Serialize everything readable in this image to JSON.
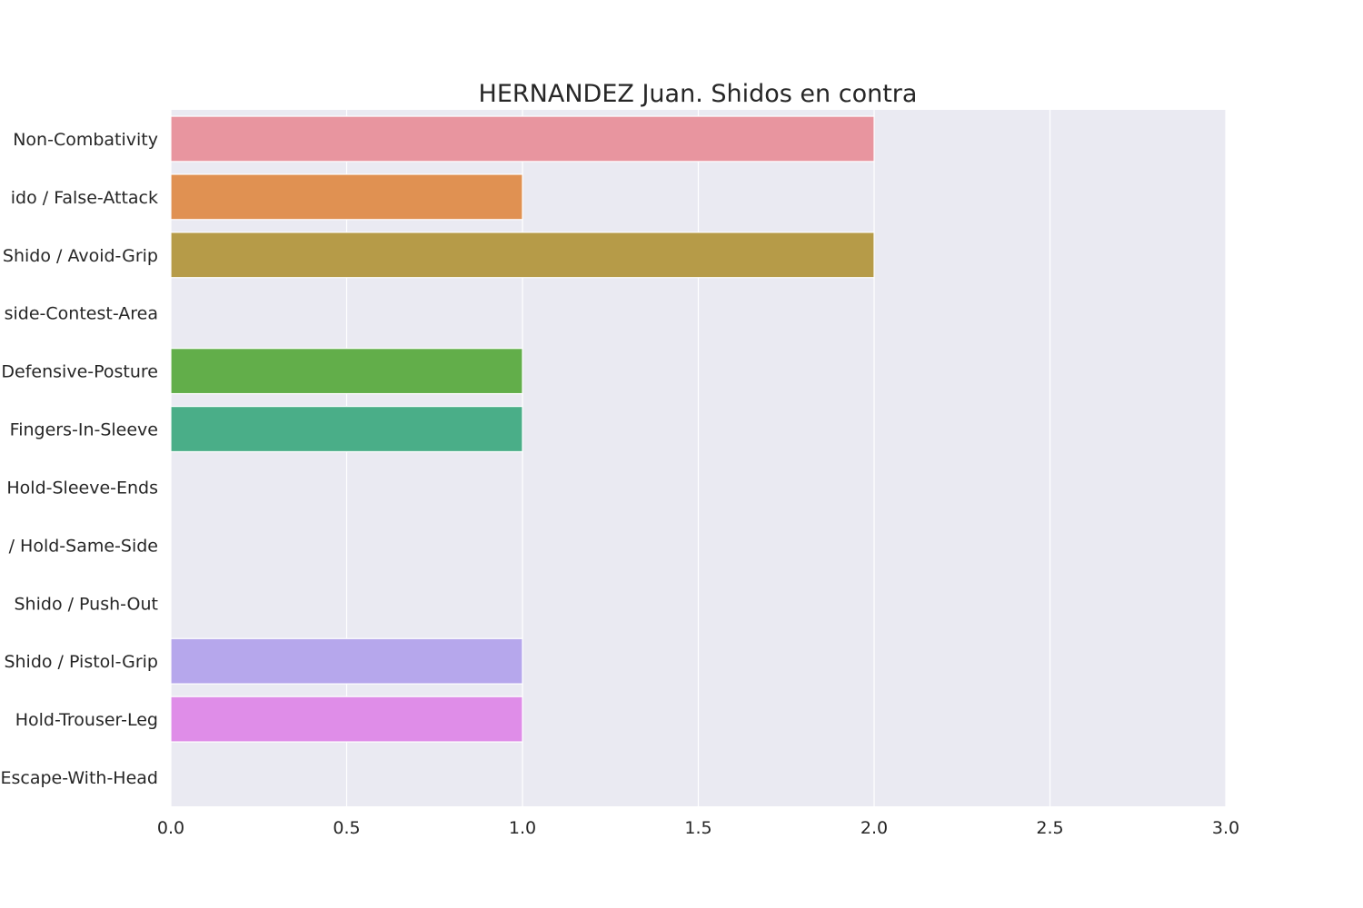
{
  "chart_data": {
    "type": "bar",
    "orientation": "horizontal",
    "title": "HERNANDEZ Juan. Shidos en contra",
    "xlabel": "",
    "ylabel": "",
    "xlim": [
      0,
      3
    ],
    "x_ticks": [
      0.0,
      0.5,
      1.0,
      1.5,
      2.0,
      2.5,
      3.0
    ],
    "x_tick_labels": [
      "0.0",
      "0.5",
      "1.0",
      "1.5",
      "2.0",
      "2.5",
      "3.0"
    ],
    "grid": true,
    "categories": [
      "Non-Combativity",
      "ido / False-Attack",
      "Shido / Avoid-Grip",
      "side-Contest-Area",
      "Defensive-Posture",
      "Fingers-In-Sleeve",
      "Hold-Sleeve-Ends",
      "/ Hold-Same-Side",
      "Shido / Push-Out",
      "Shido / Pistol-Grip",
      "Hold-Trouser-Leg",
      "Escape-With-Head"
    ],
    "values": [
      2,
      1,
      2,
      0,
      1,
      1,
      0,
      0,
      0,
      1,
      1,
      0
    ],
    "colors": [
      "#e8959f",
      "#e09152",
      "#b69b48",
      "#9ba547",
      "#62ae4a",
      "#4aae88",
      "#4bab9f",
      "#4ca7b7",
      "#78a4e2",
      "#b6a7ec",
      "#df8de8",
      "#e792c3"
    ]
  },
  "style": {
    "plot_background": "#eaeaf2",
    "grid_color": "#ffffff",
    "text_color": "#262626"
  }
}
